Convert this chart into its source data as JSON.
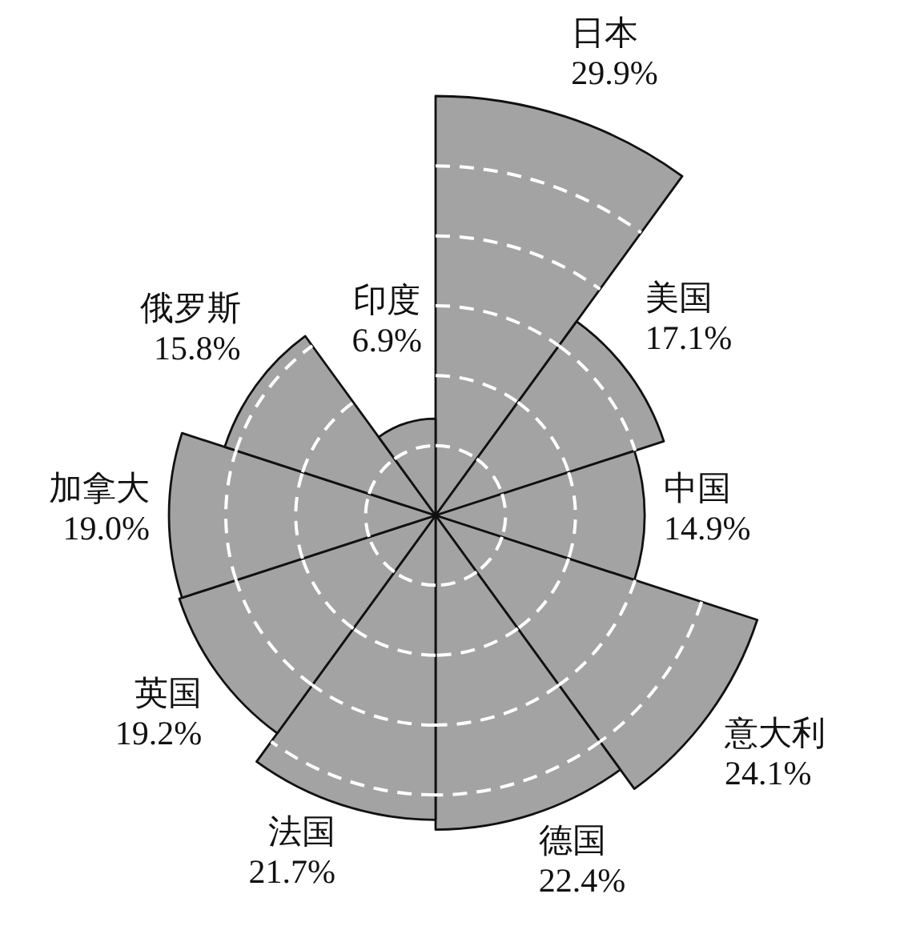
{
  "chart_data": {
    "type": "other",
    "categories": [
      "日本",
      "美国",
      "中国",
      "意大利",
      "德国",
      "法国",
      "英国",
      "加拿大",
      "俄罗斯",
      "印度"
    ],
    "values": [
      29.9,
      17.1,
      14.9,
      24.1,
      22.4,
      21.7,
      19.2,
      19.0,
      15.8,
      6.9
    ],
    "value_labels": [
      "29.9%",
      "17.1%",
      "14.9%",
      "24.1%",
      "22.4%",
      "21.7%",
      "19.2%",
      "19.0%",
      "15.8%",
      "6.9%"
    ],
    "color": "#a3a3a3"
  }
}
